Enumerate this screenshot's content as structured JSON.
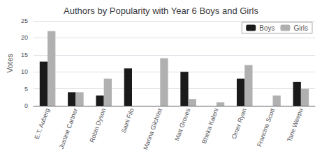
{
  "chart_data": {
    "type": "bar",
    "title": "Authors by Popularity with Year 6 Boys and Girls",
    "ylabel": "Votes",
    "categories": [
      "E.T. Auberg",
      "Justine Cartner",
      "Robin Dyson",
      "Saini Filo",
      "Marina Gilchrist",
      "Matt Groves",
      "Bheka Kaleni",
      "Omer Ryan",
      "Francine Scott",
      "Tane Weepu"
    ],
    "series": [
      {
        "name": "Boys",
        "color": "#1a1a1a",
        "values": [
          13,
          4,
          3,
          11,
          0,
          10,
          0,
          8,
          0,
          7
        ]
      },
      {
        "name": "Girls",
        "color": "#b0b0b0",
        "values": [
          22,
          4,
          8,
          0,
          14,
          2,
          1,
          12,
          3,
          5
        ]
      }
    ],
    "ylim": [
      0,
      25
    ],
    "yticks": [
      0,
      5,
      10,
      15,
      20,
      25
    ],
    "grid": true,
    "legend": "upper right"
  }
}
